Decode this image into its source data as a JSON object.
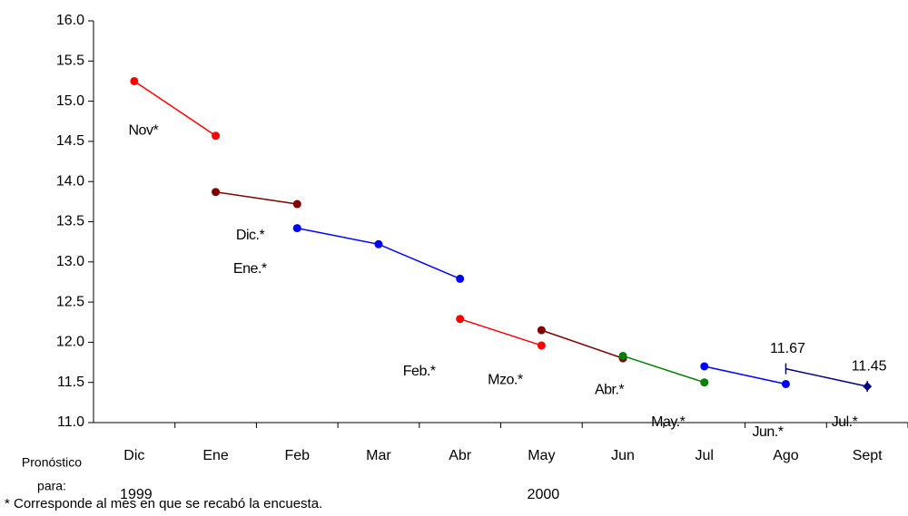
{
  "chart_data": {
    "type": "line",
    "categories": [
      "Dic",
      "Ene",
      "Feb",
      "Mar",
      "Abr",
      "May",
      "Jun",
      "Jul",
      "Ago",
      "Sept"
    ],
    "year_labels": [
      {
        "text": "1999",
        "at": "Dic"
      },
      {
        "text": "2000",
        "at": "May"
      }
    ],
    "x_axis_label": [
      "Pronóstico",
      "para:"
    ],
    "footnote": "* Corresponde al mes en que se recabó la encuesta.",
    "ylim": [
      11,
      16
    ],
    "yticks": [
      {
        "value": 11,
        "label": "11.0"
      },
      11.5,
      {
        "value": 12,
        "label": "12.0"
      },
      12.5,
      {
        "value": 13,
        "label": "13.0"
      },
      13.5,
      {
        "value": 14,
        "label": "14.0"
      },
      14.5,
      {
        "value": 15,
        "label": "15.0"
      },
      15.5,
      {
        "value": 16,
        "label": "16.0"
      }
    ],
    "grid": false,
    "series": [
      {
        "name": "Nov*",
        "color": "#ff0000",
        "marker": "circle",
        "values": [
          15.25,
          14.57,
          null,
          null,
          null,
          null,
          null,
          null,
          null,
          null
        ]
      },
      {
        "name": "Dic.*",
        "color": "#800000",
        "marker": "circle",
        "values": [
          null,
          13.87,
          13.72,
          null,
          null,
          null,
          null,
          null,
          null,
          null
        ]
      },
      {
        "name": "Ene.*",
        "color": "#0000ff",
        "marker": "circle",
        "values": [
          null,
          null,
          13.42,
          13.22,
          12.79,
          null,
          null,
          null,
          null,
          null
        ]
      },
      {
        "name": "Feb.*",
        "color": "#ff0000",
        "marker": "circle",
        "values": [
          null,
          null,
          null,
          null,
          12.29,
          11.96,
          null,
          null,
          null,
          null
        ]
      },
      {
        "name": "Mzo.*",
        "color": "#800000",
        "marker": "circle",
        "values": [
          null,
          null,
          null,
          null,
          null,
          12.15,
          11.8,
          null,
          null,
          null
        ]
      },
      {
        "name": "Abr.*",
        "color": "#008000",
        "marker": "circle",
        "values": [
          null,
          null,
          null,
          null,
          null,
          null,
          11.83,
          11.5,
          null,
          null
        ]
      },
      {
        "name": "May.*",
        "color": "#0000ff",
        "marker": "circle",
        "values": [
          null,
          null,
          null,
          null,
          null,
          null,
          null,
          11.7,
          11.48,
          null
        ]
      },
      {
        "name": "Jun.*",
        "color": "#000080",
        "marker": "dash",
        "data_labels": true,
        "values": [
          null,
          null,
          null,
          null,
          null,
          null,
          null,
          null,
          11.67,
          11.45
        ]
      },
      {
        "name": "Jul.*",
        "color": "#000080",
        "marker": "diamond",
        "data_labels": true,
        "values": [
          null,
          null,
          null,
          null,
          null,
          null,
          null,
          null,
          null,
          11.45
        ]
      }
    ]
  }
}
